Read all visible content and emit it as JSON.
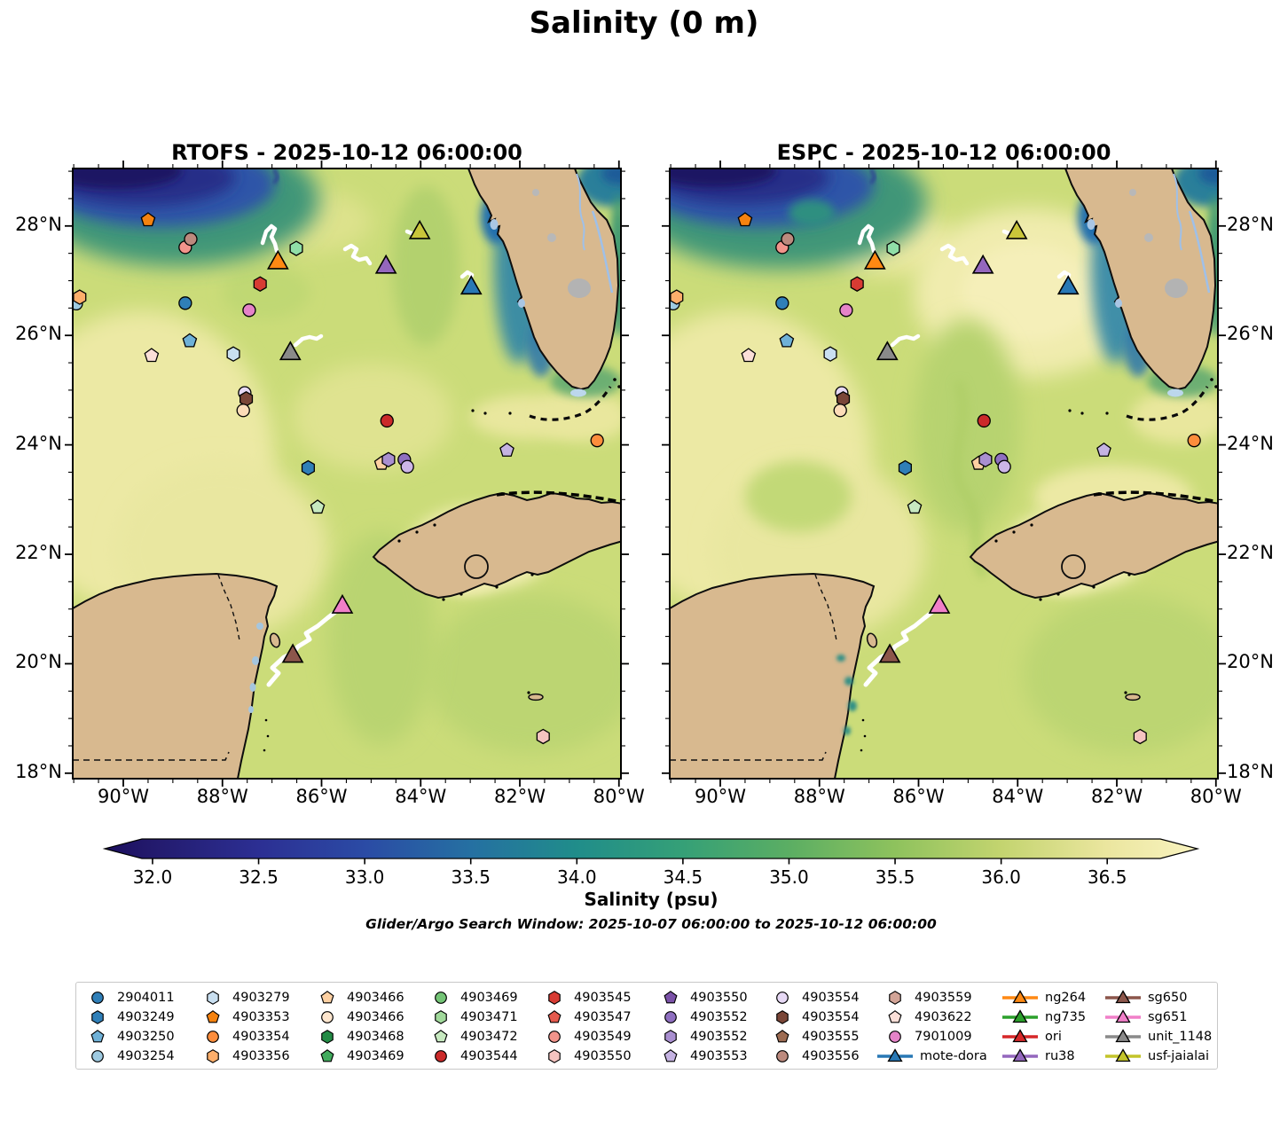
{
  "title": "Salinity (0 m)",
  "panels": [
    {
      "title": "RTOFS - 2025-10-12 06:00:00"
    },
    {
      "title": "ESPC - 2025-10-12 06:00:00"
    }
  ],
  "axes": {
    "x_ticks": [
      {
        "value": -90,
        "label": "90°W"
      },
      {
        "value": -88,
        "label": "88°W"
      },
      {
        "value": -86,
        "label": "86°W"
      },
      {
        "value": -84,
        "label": "84°W"
      },
      {
        "value": -82,
        "label": "82°W"
      },
      {
        "value": -80,
        "label": "80°W"
      }
    ],
    "y_ticks": [
      {
        "value": 28,
        "label": "28°N"
      },
      {
        "value": 26,
        "label": "26°N"
      },
      {
        "value": 24,
        "label": "24°N"
      },
      {
        "value": 22,
        "label": "22°N"
      },
      {
        "value": 20,
        "label": "20°N"
      },
      {
        "value": 18,
        "label": "18°N"
      }
    ],
    "lon_range": [
      -91.02,
      -79.96
    ],
    "lat_range": [
      17.9,
      29.05
    ]
  },
  "colorbar": {
    "label": "Salinity (psu)",
    "ticks": [
      "32.0",
      "32.5",
      "33.0",
      "33.5",
      "34.0",
      "34.5",
      "35.0",
      "35.5",
      "36.0",
      "36.5"
    ],
    "tick_values": [
      32.0,
      32.5,
      33.0,
      33.5,
      34.0,
      34.5,
      35.0,
      35.5,
      36.0,
      36.5
    ],
    "range": [
      31.95,
      36.75
    ],
    "colormap": "haline"
  },
  "subtitle": "Glider/Argo Search Window: 2025-10-07 06:00:00 to 2025-10-12 06:00:00",
  "chart_data": {
    "type": "map-scatter",
    "title": "Salinity (0 m)",
    "panel_models": [
      "RTOFS",
      "ESPC"
    ],
    "valid_time": "2025-10-12 06:00:00",
    "markers": [
      {
        "id": "4903353",
        "shape": "pentagon",
        "color": "#f5820f",
        "lon": -89.5,
        "lat": 28.11
      },
      {
        "id": "4903549",
        "shape": "circle",
        "color": "#f2948b",
        "lon": -88.75,
        "lat": 27.61
      },
      {
        "id": "4903556",
        "shape": "circle",
        "color": "#bc8a7e",
        "lon": -88.64,
        "lat": 27.76
      },
      {
        "id": "4903471",
        "shape": "hexagon",
        "color": "#90dfa8",
        "lon": -86.51,
        "lat": 27.59
      },
      {
        "id": "ng264",
        "shape": "triangle",
        "color": "#ff8913",
        "lon": -86.88,
        "lat": 27.35
      },
      {
        "id": "usf-jaialai",
        "shape": "triangle",
        "color": "#c9c53a",
        "lon": -84.02,
        "lat": 27.9
      },
      {
        "id": "ru38",
        "shape": "triangle",
        "color": "#9467bd",
        "lon": -84.7,
        "lat": 27.27
      },
      {
        "id": "mote-dora",
        "shape": "triangle",
        "color": "#2878b5",
        "lon": -82.98,
        "lat": 26.89
      },
      {
        "id": "4903545",
        "shape": "hexagon",
        "color": "#d73b33",
        "lon": -87.24,
        "lat": 26.94
      },
      {
        "id": "4903254",
        "shape": "circle",
        "color": "#9ecae1",
        "lon": -90.95,
        "lat": 26.58
      },
      {
        "id": "4903356",
        "shape": "hexagon",
        "color": "#fdae6b",
        "lon": -90.88,
        "lat": 26.7
      },
      {
        "id": "2904011",
        "shape": "circle",
        "color": "#2f7fb8",
        "lon": -88.75,
        "lat": 26.59
      },
      {
        "id": "7901009",
        "shape": "circle",
        "color": "#e583c8",
        "lon": -87.46,
        "lat": 26.46
      },
      {
        "id": "4903250",
        "shape": "pentagon",
        "color": "#6fb1d7",
        "lon": -88.66,
        "lat": 25.9
      },
      {
        "id": "4903279",
        "shape": "hexagon",
        "color": "#c9dff0",
        "lon": -87.78,
        "lat": 25.66
      },
      {
        "id": "4903622",
        "shape": "pentagon",
        "color": "#fbdfd8",
        "lon": -89.43,
        "lat": 25.63
      },
      {
        "id": "unit_1148",
        "shape": "triangle",
        "color": "#8a8a8a",
        "lon": -86.63,
        "lat": 25.69
      },
      {
        "id": "4903554",
        "shape": "circle",
        "color": "#e7d9f5",
        "lon": -87.55,
        "lat": 24.95
      },
      {
        "id": "4903554",
        "shape": "hexagon",
        "color": "#7a4638",
        "lon": -87.52,
        "lat": 24.84
      },
      {
        "id": "4903466",
        "shape": "circle",
        "color": "#fcdcb8",
        "lon": -87.58,
        "lat": 24.63
      },
      {
        "id": "4903544",
        "shape": "circle",
        "color": "#cb2a2a",
        "lon": -84.68,
        "lat": 24.44
      },
      {
        "id": "4903354",
        "shape": "circle",
        "color": "#fd8d3c",
        "lon": -80.44,
        "lat": 24.08
      },
      {
        "id": "4903553",
        "shape": "pentagon",
        "color": "#c5b3e2",
        "lon": -82.26,
        "lat": 23.9
      },
      {
        "id": "4903466",
        "shape": "pentagon",
        "color": "#fdd0a2",
        "lon": -84.79,
        "lat": 23.66
      },
      {
        "id": "4903552",
        "shape": "hexagon",
        "color": "#a98fd0",
        "lon": -84.65,
        "lat": 23.73
      },
      {
        "id": "4903552",
        "shape": "circle",
        "color": "#8f6fc0",
        "lon": -84.33,
        "lat": 23.73
      },
      {
        "id": "4903554",
        "shape": "circle",
        "color": "#cdb6e8",
        "lon": -84.27,
        "lat": 23.6
      },
      {
        "id": "4903249",
        "shape": "hexagon",
        "color": "#2f7fb8",
        "lon": -86.27,
        "lat": 23.58
      },
      {
        "id": "4903472",
        "shape": "pentagon",
        "color": "#c7e9c0",
        "lon": -86.08,
        "lat": 22.86
      },
      {
        "id": "sg651",
        "shape": "triangle",
        "color": "#f07fc8",
        "lon": -85.58,
        "lat": 21.06
      },
      {
        "id": "sg650",
        "shape": "triangle",
        "color": "#8c564b",
        "lon": -86.58,
        "lat": 20.16
      },
      {
        "id": "4903550",
        "shape": "hexagon",
        "color": "#f5c4c0",
        "lon": -81.53,
        "lat": 18.67
      }
    ],
    "tracks": [
      {
        "name": "ng264-track",
        "points": [
          [
            296,
            274
          ],
          [
            300,
            261
          ],
          [
            306,
            255
          ],
          [
            310,
            258
          ],
          [
            306,
            267
          ],
          [
            310,
            275
          ],
          [
            312,
            283
          ]
        ]
      },
      {
        "name": "glider-track-ne",
        "points": [
          [
            389,
            281
          ],
          [
            396,
            277
          ],
          [
            402,
            281
          ],
          [
            398,
            289
          ],
          [
            405,
            293
          ],
          [
            413,
            291
          ],
          [
            417,
            297
          ]
        ]
      },
      {
        "name": "unit_1148-track",
        "points": [
          [
            333,
            389
          ],
          [
            341,
            382
          ],
          [
            349,
            380
          ],
          [
            357,
            382
          ],
          [
            362,
            379
          ]
        ]
      },
      {
        "name": "mote-dora-track",
        "points": [
          [
            521,
            312
          ],
          [
            527,
            307
          ],
          [
            532,
            310
          ],
          [
            529,
            318
          ],
          [
            535,
            325
          ]
        ]
      },
      {
        "name": "usf-jaialai-track",
        "points": [
          [
            459,
            261
          ],
          [
            464,
            263
          ]
        ]
      },
      {
        "name": "sg650-sg651-track",
        "points": [
          [
            303,
            772
          ],
          [
            314,
            759
          ],
          [
            307,
            753
          ],
          [
            320,
            741
          ],
          [
            331,
            736
          ],
          [
            336,
            729
          ],
          [
            349,
            721
          ],
          [
            345,
            714
          ],
          [
            358,
            706
          ],
          [
            369,
            697
          ],
          [
            378,
            690
          ]
        ]
      }
    ]
  },
  "legend": {
    "columns": [
      [
        {
          "label": "2904011",
          "shape": "circle",
          "color": "#2f7fb8"
        },
        {
          "label": "4903249",
          "shape": "hexagon",
          "color": "#2f7fb8"
        },
        {
          "label": "4903250",
          "shape": "pentagon",
          "color": "#6fb1d7"
        },
        {
          "label": "4903254",
          "shape": "circle",
          "color": "#9ecae1"
        }
      ],
      [
        {
          "label": "4903279",
          "shape": "hexagon",
          "color": "#c9dff0"
        },
        {
          "label": "4903353",
          "shape": "pentagon",
          "color": "#f5820f"
        },
        {
          "label": "4903354",
          "shape": "circle",
          "color": "#fd8d3c"
        },
        {
          "label": "4903356",
          "shape": "hexagon",
          "color": "#fdae6b"
        }
      ],
      [
        {
          "label": "4903466",
          "shape": "pentagon",
          "color": "#fdd0a2"
        },
        {
          "label": "4903466",
          "shape": "circle",
          "color": "#fee6ce"
        },
        {
          "label": "4903468",
          "shape": "hexagon",
          "color": "#238b45"
        },
        {
          "label": "4903469",
          "shape": "pentagon",
          "color": "#41ab5d"
        }
      ],
      [
        {
          "label": "4903469",
          "shape": "circle",
          "color": "#74c476"
        },
        {
          "label": "4903471",
          "shape": "hexagon",
          "color": "#a1d99b"
        },
        {
          "label": "4903472",
          "shape": "pentagon",
          "color": "#c7e9c0"
        },
        {
          "label": "4903544",
          "shape": "circle",
          "color": "#cb2a2a"
        }
      ],
      [
        {
          "label": "4903545",
          "shape": "hexagon",
          "color": "#d73b33"
        },
        {
          "label": "4903547",
          "shape": "pentagon",
          "color": "#e45a4e"
        },
        {
          "label": "4903549",
          "shape": "circle",
          "color": "#f2948b"
        },
        {
          "label": "4903550",
          "shape": "hexagon",
          "color": "#f5c4c0"
        }
      ],
      [
        {
          "label": "4903550",
          "shape": "pentagon",
          "color": "#7b52a8"
        },
        {
          "label": "4903552",
          "shape": "circle",
          "color": "#8f6fc0"
        },
        {
          "label": "4903552",
          "shape": "hexagon",
          "color": "#a98fd0"
        },
        {
          "label": "4903553",
          "shape": "pentagon",
          "color": "#c5b3e2"
        }
      ],
      [
        {
          "label": "4903554",
          "shape": "circle",
          "color": "#e7d9f5"
        },
        {
          "label": "4903554",
          "shape": "hexagon",
          "color": "#7a4638"
        },
        {
          "label": "4903555",
          "shape": "pentagon",
          "color": "#9c6b52"
        },
        {
          "label": "4903556",
          "shape": "circle",
          "color": "#bc8a7e"
        }
      ],
      [
        {
          "label": "4903559",
          "shape": "hexagon",
          "color": "#d2a497"
        },
        {
          "label": "4903622",
          "shape": "pentagon",
          "color": "#fbdfd8"
        },
        {
          "label": "7901009",
          "shape": "circle",
          "color": "#e583c8"
        },
        {
          "label": "mote-dora",
          "shape": "glider",
          "color": "#2878b5"
        }
      ],
      [
        {
          "label": "ng264",
          "shape": "glider",
          "color": "#ff8913"
        },
        {
          "label": "ng735",
          "shape": "glider",
          "color": "#2ca02c"
        },
        {
          "label": "ori",
          "shape": "glider",
          "color": "#d62728"
        },
        {
          "label": "ru38",
          "shape": "glider",
          "color": "#9467bd"
        }
      ],
      [
        {
          "label": "sg650",
          "shape": "glider",
          "color": "#8c564b"
        },
        {
          "label": "sg651",
          "shape": "glider",
          "color": "#f07fc8"
        },
        {
          "label": "unit_1148",
          "shape": "glider",
          "color": "#8a8a8a"
        },
        {
          "label": "usf-jaialai",
          "shape": "glider",
          "color": "#c3c42a"
        }
      ]
    ]
  }
}
